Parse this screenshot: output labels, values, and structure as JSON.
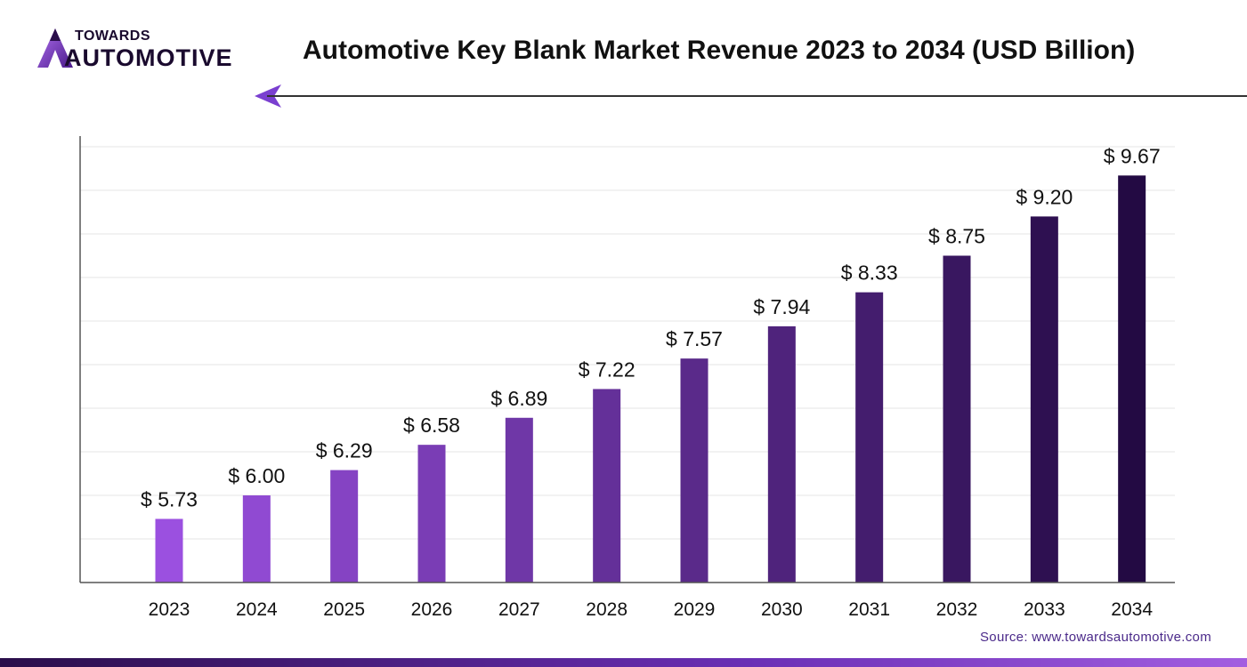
{
  "brand": {
    "top": "TOWARDS",
    "main": "AUTOMOTIVE"
  },
  "source": "Source: www.towardsautomotive.com",
  "colors": {
    "bar_start": "#9b50e0",
    "bar_end": "#230a43",
    "text": "#111111",
    "grid": "#e6e6e6",
    "axis": "#555555",
    "accent": "#7a3fd0"
  },
  "chart_data": {
    "type": "bar",
    "title": "Automotive Key Blank Market Revenue 2023 to 2034 (USD Billion)",
    "xlabel": "",
    "ylabel": "",
    "categories": [
      "2023",
      "2024",
      "2025",
      "2026",
      "2027",
      "2028",
      "2029",
      "2030",
      "2031",
      "2032",
      "2033",
      "2034"
    ],
    "values": [
      5.73,
      6.0,
      6.29,
      6.58,
      6.89,
      7.22,
      7.57,
      7.94,
      8.33,
      8.75,
      9.2,
      9.67
    ],
    "data_labels": [
      "$ 5.73",
      "$ 6.00",
      "$ 6.29",
      "$ 6.58",
      "$ 6.89",
      "$ 7.22",
      "$ 7.57",
      "$ 7.94",
      "$ 8.33",
      "$ 8.75",
      "$ 9.20",
      "$ 9.67"
    ],
    "ylim": [
      5,
      10
    ],
    "grid": true,
    "legend": "none"
  }
}
